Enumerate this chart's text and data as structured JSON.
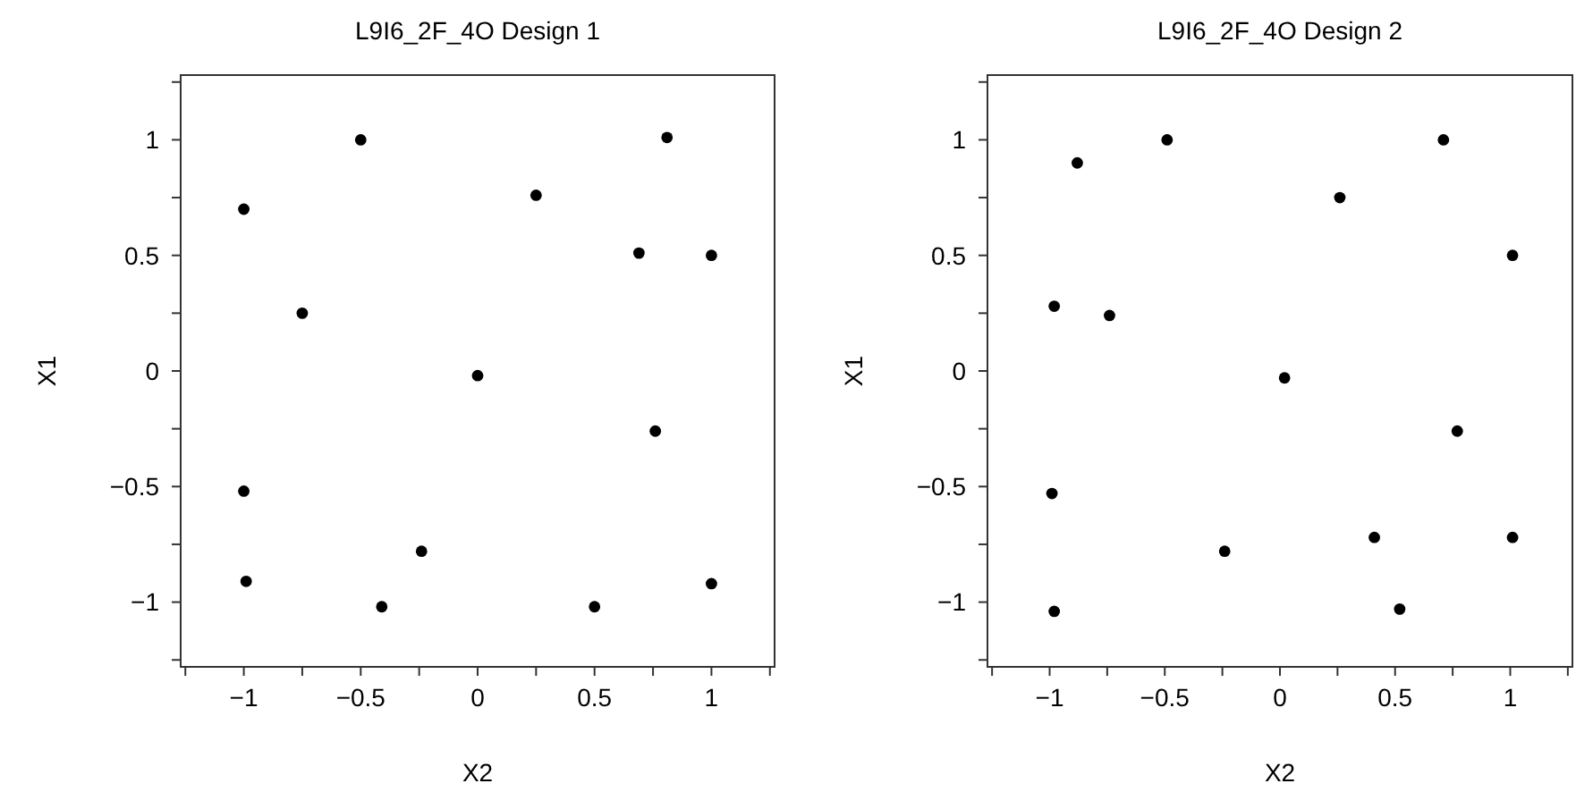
{
  "chart_data": [
    {
      "type": "scatter",
      "title": "L9I6_2F_4O Design 1",
      "xlabel": "X2",
      "ylabel": "X1",
      "marker": "circle",
      "grid": false,
      "xlim": [
        -1.27,
        1.27
      ],
      "ylim": [
        -1.28,
        1.28
      ],
      "xticks": [
        {
          "value": -1.25,
          "label": null
        },
        -1,
        {
          "value": -0.75,
          "label": null
        },
        -0.5,
        {
          "value": -0.25,
          "label": null
        },
        0,
        {
          "value": 0.25,
          "label": null
        },
        0.5,
        {
          "value": 0.75,
          "label": null
        },
        1,
        {
          "value": 1.25,
          "label": null
        }
      ],
      "yticks": [
        {
          "value": -1.25,
          "label": null
        },
        -1,
        {
          "value": -0.75,
          "label": null
        },
        -0.5,
        {
          "value": -0.25,
          "label": null
        },
        0,
        {
          "value": 0.25,
          "label": null
        },
        0.5,
        {
          "value": 0.75,
          "label": null
        },
        1,
        {
          "value": 1.25,
          "label": null
        }
      ],
      "series": [
        {
          "color": "#000000",
          "x": [
            -1.0,
            -0.5,
            -0.75,
            -1.0,
            -0.99,
            -0.41,
            -0.24,
            0.0,
            0.25,
            0.5,
            0.69,
            0.81,
            1.0,
            0.76,
            1.0
          ],
          "values": [
            0.7,
            1.0,
            0.25,
            -0.52,
            -0.91,
            -1.02,
            -0.78,
            -0.02,
            0.76,
            -1.02,
            0.51,
            1.01,
            0.5,
            -0.26,
            -0.92
          ]
        }
      ]
    },
    {
      "type": "scatter",
      "title": "L9I6_2F_4O Design 2",
      "xlabel": "X2",
      "ylabel": "X1",
      "marker": "circle",
      "grid": false,
      "xlim": [
        -1.27,
        1.27
      ],
      "ylim": [
        -1.28,
        1.28
      ],
      "xticks": [
        {
          "value": -1.25,
          "label": null
        },
        -1,
        {
          "value": -0.75,
          "label": null
        },
        -0.5,
        {
          "value": -0.25,
          "label": null
        },
        0,
        {
          "value": 0.25,
          "label": null
        },
        0.5,
        {
          "value": 0.75,
          "label": null
        },
        1,
        {
          "value": 1.25,
          "label": null
        }
      ],
      "yticks": [
        {
          "value": -1.25,
          "label": null
        },
        -1,
        {
          "value": -0.75,
          "label": null
        },
        -0.5,
        {
          "value": -0.25,
          "label": null
        },
        0,
        {
          "value": 0.25,
          "label": null
        },
        0.5,
        {
          "value": 0.75,
          "label": null
        },
        1,
        {
          "value": 1.25,
          "label": null
        }
      ],
      "series": [
        {
          "color": "#000000",
          "x": [
            -0.88,
            -0.49,
            -0.98,
            -0.74,
            -0.99,
            -0.98,
            -0.24,
            0.02,
            0.26,
            0.71,
            1.01,
            0.77,
            0.41,
            0.52,
            1.01
          ],
          "values": [
            0.9,
            1.0,
            0.28,
            0.24,
            -0.53,
            -1.04,
            -0.78,
            -0.03,
            0.75,
            1.0,
            0.5,
            -0.26,
            -0.72,
            -1.03,
            -0.72
          ]
        }
      ]
    }
  ]
}
